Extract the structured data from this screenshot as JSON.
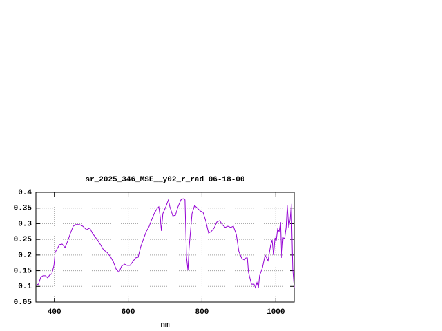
{
  "chart_data": {
    "type": "line",
    "title": "sr_2025_346_MSE__y02_r_rad 06-18-00",
    "x_label": "nm",
    "xlim": [
      350,
      1050
    ],
    "xticks": [
      400,
      600,
      800,
      1000
    ],
    "ylim": [
      0.05,
      0.4
    ],
    "yticks": [
      0.05,
      0.1,
      0.15,
      0.2,
      0.25,
      0.3,
      0.35,
      0.4
    ],
    "grid": true,
    "x": [
      352,
      357,
      363,
      369,
      376,
      382,
      387,
      393,
      399,
      402,
      408,
      414,
      421,
      429,
      436,
      443,
      451,
      458,
      468,
      477,
      487,
      496,
      503,
      511,
      518,
      526,
      533,
      543,
      552,
      560,
      567,
      575,
      582,
      590,
      597,
      605,
      612,
      620,
      627,
      634,
      642,
      649,
      657,
      664,
      672,
      679,
      683,
      687,
      690,
      694,
      702,
      709,
      713,
      721,
      728,
      735,
      743,
      749,
      754,
      758,
      762,
      765,
      773,
      780,
      788,
      795,
      803,
      810,
      818,
      825,
      833,
      840,
      848,
      855,
      863,
      870,
      878,
      885,
      893,
      900,
      908,
      915,
      919,
      923,
      926,
      934,
      941,
      945,
      949,
      953,
      956,
      964,
      971,
      979,
      986,
      990,
      994,
      998,
      1001,
      1005,
      1009,
      1013,
      1016,
      1020,
      1024,
      1028,
      1031,
      1035,
      1039,
      1042,
      1046,
      1050
    ],
    "series": [
      {
        "color": "#9400d3",
        "values": [
          0.105,
          0.107,
          0.129,
          0.134,
          0.134,
          0.127,
          0.136,
          0.14,
          0.167,
          0.208,
          0.221,
          0.233,
          0.235,
          0.224,
          0.244,
          0.268,
          0.292,
          0.297,
          0.297,
          0.292,
          0.281,
          0.286,
          0.27,
          0.257,
          0.246,
          0.231,
          0.217,
          0.208,
          0.195,
          0.178,
          0.156,
          0.145,
          0.164,
          0.171,
          0.167,
          0.167,
          0.178,
          0.191,
          0.193,
          0.226,
          0.253,
          0.275,
          0.292,
          0.314,
          0.336,
          0.349,
          0.354,
          0.321,
          0.277,
          0.332,
          0.354,
          0.376,
          0.354,
          0.325,
          0.327,
          0.354,
          0.376,
          0.38,
          0.376,
          0.195,
          0.151,
          0.221,
          0.332,
          0.358,
          0.349,
          0.341,
          0.336,
          0.31,
          0.27,
          0.275,
          0.286,
          0.305,
          0.31,
          0.297,
          0.288,
          0.292,
          0.288,
          0.292,
          0.266,
          0.211,
          0.189,
          0.184,
          0.191,
          0.191,
          0.145,
          0.107,
          0.107,
          0.096,
          0.112,
          0.096,
          0.134,
          0.16,
          0.2,
          0.182,
          0.231,
          0.248,
          0.2,
          0.255,
          0.244,
          0.283,
          0.275,
          0.305,
          0.191,
          0.255,
          0.253,
          0.288,
          0.358,
          0.288,
          0.314,
          0.363,
          0.156,
          0.094
        ]
      }
    ]
  }
}
